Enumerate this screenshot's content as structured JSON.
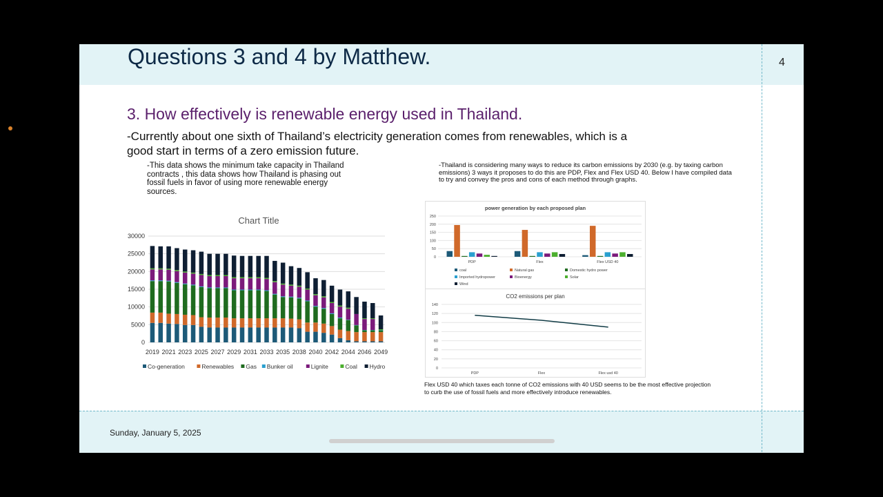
{
  "slide": {
    "title": "Questions 3 and 4 by Matthew.",
    "page_number": "4",
    "subtitle": "3. How effectively is renewable energy used in Thailand.",
    "body": "-Currently about one sixth of Thailand’s electricity generation comes from renewables, which is a good start in terms of a zero emission future.",
    "left_note": "-This data shows the minimum take capacity in Thailand contracts , this data shows how Thailand is phasing out fossil fuels in favor of using more renewable energy sources.",
    "right_note": "-Thailand is considering many ways to reduce its carbon emissions by 2030 (e.g. by taxing carbon emissions) 3 ways it proposes to do this are PDP, Flex and Flex USD 40. Below I have compiled data to try and convey the pros and cons of each method through graphs.",
    "conclusion": "Flex USD 40 which taxes each tonne of CO2 emissions with 40 USD seems to be the most effective projection to curb the use of fossil fuels and more effectively introduce renewables.",
    "date": "Sunday, January 5, 2025"
  },
  "chart_data": [
    {
      "type": "bar",
      "stacked": true,
      "title": "Chart Title",
      "ylim": [
        0,
        30000
      ],
      "yticks": [
        0,
        5000,
        10000,
        15000,
        20000,
        25000,
        30000
      ],
      "grid": true,
      "legend": "bottom",
      "categories": [
        "2019",
        "2020",
        "2021",
        "2022",
        "2023",
        "2024",
        "2025",
        "2026",
        "2027",
        "2028",
        "2029",
        "2030",
        "2031",
        "2032",
        "2033",
        "2034",
        "2035",
        "2036",
        "2038",
        "2039",
        "2040",
        "2041",
        "2042",
        "2043",
        "2044",
        "2045",
        "2046",
        "2047",
        "2049"
      ],
      "xtick_labels": [
        "2019",
        "2021",
        "2023",
        "2025",
        "2027",
        "2029",
        "2031",
        "2033",
        "2035",
        "2038",
        "2040",
        "2042",
        "2044",
        "2046",
        "2049"
      ],
      "series": [
        {
          "name": "Co-generation",
          "color": "#1d5a78",
          "values": [
            5500,
            5500,
            5300,
            5200,
            4900,
            4900,
            4400,
            4200,
            4200,
            4200,
            4200,
            4200,
            4200,
            4200,
            4200,
            4200,
            4200,
            4200,
            4000,
            3000,
            3000,
            2700,
            2200,
            1200,
            600,
            300,
            300,
            300,
            300
          ]
        },
        {
          "name": "Renewables",
          "color": "#d0692a",
          "values": [
            2900,
            2900,
            2800,
            2800,
            2900,
            2800,
            2700,
            2800,
            2800,
            2800,
            2600,
            2600,
            2600,
            2600,
            2600,
            2600,
            2600,
            2500,
            2500,
            2600,
            2600,
            2600,
            2400,
            2400,
            2600,
            2600,
            2600,
            2600,
            2600
          ]
        },
        {
          "name": "Gas",
          "color": "#1f6b1f",
          "values": [
            8900,
            8900,
            9100,
            8800,
            8600,
            8400,
            8500,
            8300,
            8300,
            8300,
            7900,
            7900,
            7900,
            7900,
            7700,
            6700,
            6000,
            6000,
            5900,
            6000,
            4500,
            4200,
            3400,
            3200,
            3100,
            1900,
            500,
            500,
            500
          ]
        },
        {
          "name": "Bunker oil",
          "color": "#2aa0cf",
          "values": [
            200,
            200,
            200,
            200,
            200,
            200,
            200,
            200,
            200,
            200,
            200,
            200,
            200,
            200,
            200,
            200,
            200,
            200,
            200,
            200,
            200,
            200,
            200,
            200,
            100,
            100,
            100,
            100,
            100
          ]
        },
        {
          "name": "Lignite",
          "color": "#7b1a7b",
          "values": [
            3100,
            3100,
            3100,
            3100,
            3100,
            3100,
            3200,
            3200,
            3200,
            3200,
            3200,
            3200,
            3200,
            3200,
            3200,
            3300,
            3300,
            3100,
            3100,
            3100,
            3000,
            3000,
            2900,
            3100,
            3100,
            3100,
            3100,
            3100,
            0
          ]
        },
        {
          "name": "Coal",
          "color": "#4caf2e",
          "values": [
            300,
            300,
            300,
            300,
            300,
            300,
            300,
            300,
            300,
            300,
            300,
            300,
            300,
            300,
            300,
            300,
            300,
            300,
            300,
            300,
            300,
            300,
            300,
            300,
            300,
            0,
            200,
            200,
            200
          ]
        },
        {
          "name": "Hydro",
          "color": "#0f1f33",
          "values": [
            6300,
            6200,
            6300,
            6200,
            6200,
            6300,
            6300,
            6000,
            6000,
            6000,
            6100,
            6000,
            6000,
            6000,
            6200,
            5700,
            5900,
            5200,
            5000,
            4600,
            4500,
            4600,
            4600,
            4500,
            4600,
            4800,
            4700,
            4300,
            3900
          ]
        }
      ]
    },
    {
      "type": "bar",
      "title": "power generation by each proposed plan",
      "ylim": [
        0,
        250
      ],
      "yticks": [
        0,
        50,
        100,
        150,
        200,
        250
      ],
      "grid": true,
      "legend": "bottom",
      "categories": [
        "PDP",
        "Flex",
        "Flex USD 40"
      ],
      "series": [
        {
          "name": "coal",
          "color": "#1d5a78",
          "values": [
            35,
            35,
            10
          ]
        },
        {
          "name": "Natural gas",
          "color": "#d0692a",
          "values": [
            195,
            165,
            190
          ]
        },
        {
          "name": "Domestic hydro power",
          "color": "#1f6b1f",
          "values": [
            5,
            5,
            5
          ]
        },
        {
          "name": "Imported hydropower",
          "color": "#2aa0cf",
          "values": [
            28,
            28,
            28
          ]
        },
        {
          "name": "Bioenergy",
          "color": "#7b1a7b",
          "values": [
            20,
            20,
            20
          ]
        },
        {
          "name": "Solar",
          "color": "#4caf2e",
          "values": [
            12,
            28,
            28
          ]
        },
        {
          "name": "Wind",
          "color": "#0f1f33",
          "values": [
            5,
            17,
            17
          ]
        }
      ]
    },
    {
      "type": "line",
      "title": "CO2 emissions per plan",
      "ylim": [
        0,
        140
      ],
      "yticks": [
        0,
        20,
        40,
        60,
        80,
        100,
        120,
        140
      ],
      "grid": true,
      "categories": [
        "PDP",
        "Flex",
        "Flex usd 40"
      ],
      "series": [
        {
          "color": "#0f3a44",
          "values": [
            116,
            105,
            90
          ]
        }
      ]
    }
  ]
}
